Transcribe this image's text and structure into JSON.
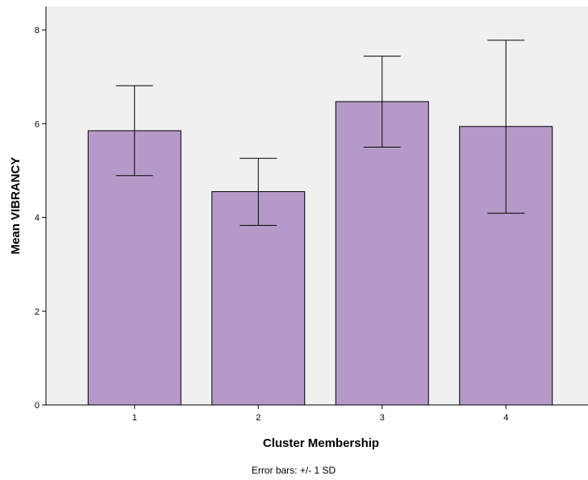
{
  "chart_data": {
    "type": "bar",
    "categories": [
      "1",
      "2",
      "3",
      "4"
    ],
    "values": [
      5.85,
      4.55,
      6.47,
      5.94
    ],
    "error_low": [
      4.89,
      3.83,
      5.5,
      4.09
    ],
    "error_high": [
      6.81,
      5.26,
      7.44,
      7.78
    ],
    "xlabel": "Cluster Membership",
    "ylabel": "Mean VIBRANCY",
    "ylim": [
      0,
      8.5
    ],
    "yticks": [
      "0",
      "2",
      "4",
      "6",
      "8"
    ],
    "footnote": "Error bars: +/- 1 SD",
    "grid": false,
    "colors": {
      "bar_fill": "#b59ac9",
      "bar_stroke": "#000000",
      "plot_background": "#f0f0f0"
    }
  }
}
